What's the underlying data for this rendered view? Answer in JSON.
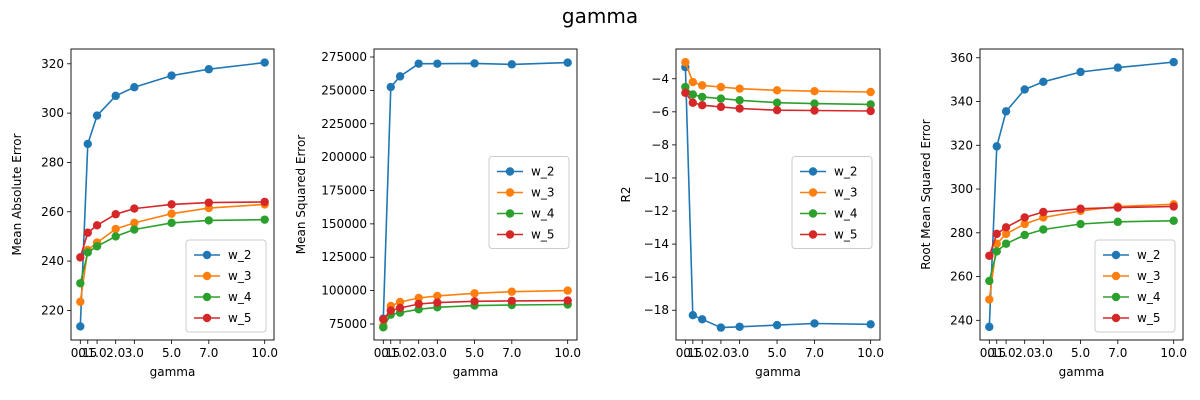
{
  "figure": {
    "suptitle": "gamma"
  },
  "colors": {
    "w_2": "#1f77b4",
    "w_3": "#ff7f0e",
    "w_4": "#2ca02c",
    "w_5": "#d62728"
  },
  "chart_data": [
    {
      "type": "line",
      "xlabel": "gamma",
      "ylabel": "Mean Absolute Error",
      "x": [
        0.1,
        0.5,
        1.0,
        2.0,
        3.0,
        5.0,
        7.0,
        10.0
      ],
      "xticks": [
        0.1,
        0.5,
        1.0,
        2.0,
        3.0,
        5.0,
        7.0,
        10.0
      ],
      "xticklabels": [
        "0.1",
        "0.5",
        "1.0",
        "2.0",
        "3.0",
        "5.0",
        "7.0",
        "10.0"
      ],
      "xlim": [
        -0.4,
        10.5
      ],
      "ylim": [
        208,
        326
      ],
      "yticks": [
        220,
        240,
        260,
        280,
        300,
        320
      ],
      "yticklabels": [
        "220",
        "240",
        "260",
        "280",
        "300",
        "320"
      ],
      "legend": "lower-right",
      "series": [
        {
          "name": "w_2",
          "values": [
            213.5,
            287.5,
            299.0,
            307.0,
            310.5,
            315.2,
            317.8,
            320.5
          ]
        },
        {
          "name": "w_3",
          "values": [
            223.5,
            244.5,
            247.5,
            253.0,
            255.5,
            259.2,
            261.5,
            263.0
          ]
        },
        {
          "name": "w_4",
          "values": [
            231.0,
            243.5,
            246.0,
            250.0,
            252.8,
            255.5,
            256.5,
            256.8
          ]
        },
        {
          "name": "w_5",
          "values": [
            241.5,
            251.5,
            254.5,
            259.0,
            261.3,
            263.0,
            263.7,
            264.0
          ]
        }
      ]
    },
    {
      "type": "line",
      "xlabel": "gamma",
      "ylabel": "Mean Squared Error",
      "x": [
        0.1,
        0.5,
        1.0,
        2.0,
        3.0,
        5.0,
        7.0,
        10.0
      ],
      "xticks": [
        0.1,
        0.5,
        1.0,
        2.0,
        3.0,
        5.0,
        7.0,
        10.0
      ],
      "xticklabels": [
        "0.1",
        "0.5",
        "1.0",
        "2.0",
        "3.0",
        "5.0",
        "7.0",
        "10.0"
      ],
      "xlim": [
        -0.4,
        10.5
      ],
      "ylim": [
        63000,
        281000
      ],
      "yticks": [
        75000,
        100000,
        125000,
        150000,
        175000,
        200000,
        225000,
        250000,
        275000
      ],
      "yticklabels": [
        "75000",
        "100000",
        "125000",
        "150000",
        "175000",
        "200000",
        "225000",
        "250000",
        "275000"
      ],
      "legend": "center-right",
      "series": [
        {
          "name": "w_2",
          "values": [
            79000,
            252500,
            260500,
            270000,
            270000,
            270200,
            269500,
            270800
          ]
        },
        {
          "name": "w_3",
          "values": [
            73500,
            88500,
            91500,
            94500,
            96000,
            98000,
            99200,
            100000
          ]
        },
        {
          "name": "w_4",
          "values": [
            72500,
            82000,
            83500,
            86000,
            87500,
            88800,
            89200,
            89600
          ]
        },
        {
          "name": "w_5",
          "values": [
            78500,
            85000,
            87000,
            90000,
            91000,
            92000,
            92300,
            92500
          ]
        }
      ]
    },
    {
      "type": "line",
      "xlabel": "gamma",
      "ylabel": "R2",
      "x": [
        0.1,
        0.5,
        1.0,
        2.0,
        3.0,
        5.0,
        7.0,
        10.0
      ],
      "xticks": [
        0.1,
        0.5,
        1.0,
        2.0,
        3.0,
        5.0,
        7.0,
        10.0
      ],
      "xticklabels": [
        "0.1",
        "0.5",
        "1.0",
        "2.0",
        "3.0",
        "5.0",
        "7.0",
        "10.0"
      ],
      "xlim": [
        -0.4,
        10.5
      ],
      "ylim": [
        -19.8,
        -2.2
      ],
      "yticks": [
        -18,
        -16,
        -14,
        -12,
        -10,
        -8,
        -6,
        -4
      ],
      "yticklabels": [
        "−18",
        "−16",
        "−14",
        "−12",
        "−10",
        "−8",
        "−6",
        "−4"
      ],
      "legend": "center-right",
      "series": [
        {
          "name": "w_2",
          "values": [
            -3.3,
            -18.3,
            -18.55,
            -19.05,
            -19.0,
            -18.9,
            -18.8,
            -18.85
          ]
        },
        {
          "name": "w_3",
          "values": [
            -3.0,
            -4.2,
            -4.4,
            -4.5,
            -4.6,
            -4.7,
            -4.75,
            -4.8
          ]
        },
        {
          "name": "w_4",
          "values": [
            -4.5,
            -4.95,
            -5.1,
            -5.2,
            -5.3,
            -5.45,
            -5.5,
            -5.55
          ]
        },
        {
          "name": "w_5",
          "values": [
            -4.85,
            -5.45,
            -5.6,
            -5.7,
            -5.8,
            -5.9,
            -5.92,
            -5.95
          ]
        }
      ]
    },
    {
      "type": "line",
      "xlabel": "gamma",
      "ylabel": "Root Mean Squared Error",
      "x": [
        0.1,
        0.5,
        1.0,
        2.0,
        3.0,
        5.0,
        7.0,
        10.0
      ],
      "xticks": [
        0.1,
        0.5,
        1.0,
        2.0,
        3.0,
        5.0,
        7.0,
        10.0
      ],
      "xticklabels": [
        "0.1",
        "0.5",
        "1.0",
        "2.0",
        "3.0",
        "5.0",
        "7.0",
        "10.0"
      ],
      "xlim": [
        -0.4,
        10.5
      ],
      "ylim": [
        231,
        364
      ],
      "yticks": [
        240,
        260,
        280,
        300,
        320,
        340,
        360
      ],
      "yticklabels": [
        "240",
        "260",
        "280",
        "300",
        "320",
        "340",
        "360"
      ],
      "legend": "lower-right",
      "series": [
        {
          "name": "w_2",
          "values": [
            237.0,
            319.5,
            335.5,
            345.5,
            349.0,
            353.5,
            355.5,
            358.0
          ]
        },
        {
          "name": "w_3",
          "values": [
            249.5,
            275.0,
            279.5,
            284.0,
            287.0,
            290.0,
            292.0,
            293.0
          ]
        },
        {
          "name": "w_4",
          "values": [
            258.0,
            271.5,
            275.0,
            279.0,
            281.5,
            284.0,
            285.0,
            285.5
          ]
        },
        {
          "name": "w_5",
          "values": [
            269.5,
            279.5,
            282.5,
            287.0,
            289.5,
            291.0,
            291.5,
            292.0
          ]
        }
      ]
    }
  ]
}
